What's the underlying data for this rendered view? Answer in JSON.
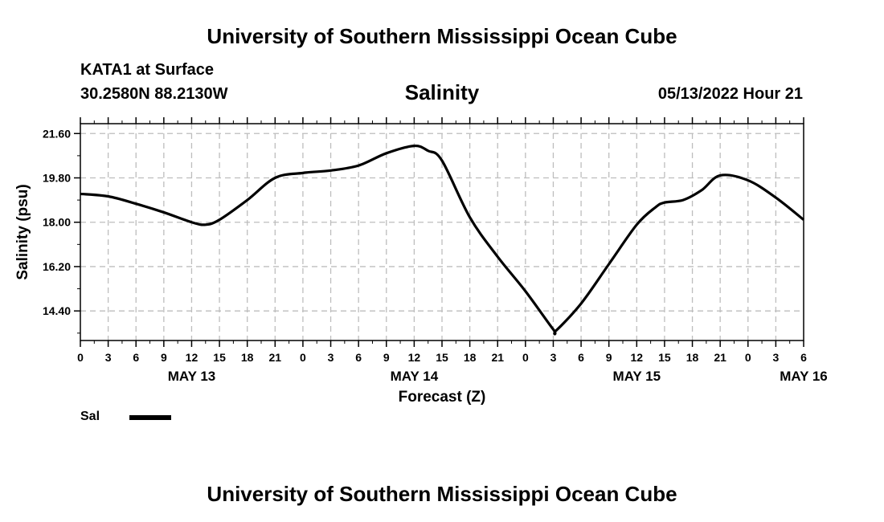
{
  "header": {
    "title": "University of Southern Mississippi Ocean Cube",
    "station": "KATA1 at Surface",
    "coordinates": "30.2580N  88.2130W",
    "variable": "Salinity",
    "datetime": "05/13/2022 Hour 21"
  },
  "footer": {
    "title": "University of Southern Mississippi Ocean Cube"
  },
  "legend": {
    "label": "Sal"
  },
  "chart_data": {
    "type": "line",
    "title": "Salinity",
    "xlabel": "Forecast (Z)",
    "ylabel": "Salinity (psu)",
    "xlim": [
      0,
      78
    ],
    "ylim": [
      13.2,
      22.0
    ],
    "grid": true,
    "y_ticks": [
      14.4,
      16.2,
      18.0,
      19.8,
      21.6
    ],
    "y_tick_labels": [
      "14.40",
      "16.20",
      "18.00",
      "19.80",
      "21.60"
    ],
    "x_ticks": [
      0,
      3,
      6,
      9,
      12,
      15,
      18,
      21,
      24,
      27,
      30,
      33,
      36,
      39,
      42,
      45,
      48,
      51,
      54,
      57,
      60,
      63,
      66,
      69,
      72,
      75,
      78
    ],
    "x_tick_labels": [
      "0",
      "3",
      "6",
      "9",
      "12",
      "15",
      "18",
      "21",
      "0",
      "3",
      "6",
      "9",
      "12",
      "15",
      "18",
      "21",
      "0",
      "3",
      "6",
      "9",
      "12",
      "15",
      "18",
      "21",
      "0",
      "3",
      "6"
    ],
    "date_labels": [
      {
        "x": 12,
        "label": "MAY 13"
      },
      {
        "x": 36,
        "label": "MAY 14"
      },
      {
        "x": 60,
        "label": "MAY 15"
      },
      {
        "x": 78,
        "label": "MAY 16"
      }
    ],
    "series": [
      {
        "name": "Sal",
        "color": "#000000",
        "x": [
          0,
          3,
          6,
          9,
          12,
          13.5,
          15,
          18,
          21,
          24,
          27,
          30,
          33,
          36,
          37.5,
          39,
          42,
          45,
          48,
          51,
          51.3,
          54,
          57,
          60,
          62,
          63,
          65,
          67,
          69,
          72,
          75,
          78
        ],
        "y": [
          19.15,
          19.05,
          18.75,
          18.4,
          18.0,
          17.9,
          18.1,
          18.9,
          19.8,
          20.0,
          20.1,
          20.3,
          20.8,
          21.1,
          20.9,
          20.5,
          18.2,
          16.6,
          15.2,
          13.65,
          13.6,
          14.7,
          16.3,
          17.9,
          18.6,
          18.8,
          18.9,
          19.3,
          19.9,
          19.7,
          19.0,
          18.1
        ]
      }
    ]
  }
}
